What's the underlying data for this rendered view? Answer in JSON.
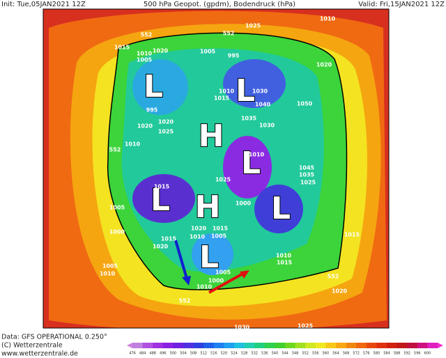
{
  "header": {
    "init": "Init: Tue,05JAN2021 12Z",
    "title": "500 hPa Geopot. (gpdm), Bodendruck (hPa)",
    "valid": "Valid: Fri,15JAN2021 12Z"
  },
  "footer": {
    "data": "Data: GFS OPERATIONAL 0.250°",
    "copyright": "(C) Wetterzentrale",
    "url": "www.wetterzentrale.de"
  },
  "colorbar": {
    "labels": [
      "476",
      "484",
      "488",
      "496",
      "500",
      "504",
      "508",
      "512",
      "516",
      "520",
      "524",
      "528",
      "532",
      "536",
      "540",
      "544",
      "548",
      "552",
      "556",
      "560",
      "564",
      "568",
      "572",
      "576",
      "580",
      "584",
      "588",
      "592",
      "596",
      "600"
    ]
  },
  "map": {
    "systems": [
      "L",
      "L",
      "H",
      "L",
      "L",
      "H",
      "L",
      "L"
    ],
    "isobar_labels": [
      "552",
      "552",
      "1025",
      "1010",
      "1015",
      "1010",
      "1005",
      "1020",
      "1005",
      "995",
      "1020",
      "1010",
      "1015",
      "1030",
      "1040",
      "1050",
      "995",
      "1020",
      "1025",
      "1020",
      "1010",
      "552",
      "1035",
      "1030",
      "1010",
      "1045",
      "1035",
      "1025",
      "1025",
      "1015",
      "1005",
      "1000",
      "1000",
      "1020",
      "1015",
      "1010",
      "1005",
      "1015",
      "1020",
      "1005",
      "1010",
      "1010",
      "1015",
      "1005",
      "1000",
      "1010",
      "552",
      "552",
      "1020",
      "1015",
      "1030",
      "1025"
    ]
  }
}
